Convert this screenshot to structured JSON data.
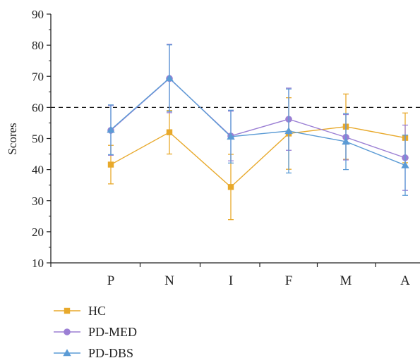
{
  "chart_data": {
    "type": "line",
    "categories": [
      "P",
      "N",
      "I",
      "F",
      "M",
      "A"
    ],
    "ylabel": "Scores",
    "xlabel": "",
    "ylim": [
      10,
      90
    ],
    "yticks": [
      10,
      20,
      30,
      40,
      50,
      60,
      70,
      80,
      90
    ],
    "reference_line": {
      "y": 60,
      "style": "dashed"
    },
    "grid": false,
    "legend_position": "bottom-left",
    "series": [
      {
        "name": "HC",
        "color": "#E8A92B",
        "marker": "square",
        "values": [
          41.6,
          52.0,
          34.4,
          51.6,
          53.8,
          50.2
        ],
        "error": [
          6.2,
          7.0,
          10.5,
          11.5,
          10.5,
          8.0
        ]
      },
      {
        "name": "PD-MED",
        "color": "#9B7FD4",
        "marker": "circle",
        "values": [
          52.6,
          69.3,
          50.8,
          56.2,
          50.4,
          43.8
        ],
        "error": [
          8.0,
          11.0,
          8.0,
          10.0,
          7.3,
          10.5
        ]
      },
      {
        "name": "PD-DBS",
        "color": "#5B9BD5",
        "marker": "triangle",
        "values": [
          52.8,
          69.4,
          50.6,
          52.4,
          49.0,
          41.4
        ],
        "error": [
          8.0,
          10.7,
          8.5,
          13.5,
          9.0,
          9.7
        ]
      }
    ]
  }
}
